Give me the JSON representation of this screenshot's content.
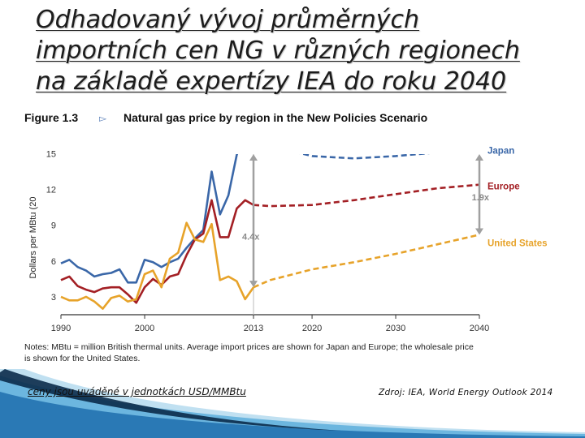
{
  "slide": {
    "title_lines": [
      "Odhadovaný vývoj průměrných",
      "importních cen NG v různých regionech",
      "na základě expertízy IEA do roku 2040"
    ],
    "footer_note": "ceny jsou uváděné v jednotkách USD/MMBtu",
    "footer_source": "Zdroj: IEA, World Energy Outlook 2014"
  },
  "figure": {
    "label": "Figure 1.3",
    "arrow": "▻",
    "caption": "Natural gas price by region in the New Policies Scenario",
    "notes": [
      "Notes: MBtu = million British thermal units. Average import prices are shown for Japan and Europe; the wholesale price",
      "is shown for the United States."
    ]
  },
  "chart_data": {
    "type": "line",
    "ylabel": "Dollars per MBtu (20",
    "xlabel": "",
    "ylim": [
      1.5,
      17
    ],
    "y_ticks": [
      3,
      6,
      9,
      12,
      15
    ],
    "x_ticks": [
      1990,
      2000,
      2013,
      2020,
      2030,
      2040
    ],
    "x_scale": {
      "historical_domain": [
        1990,
        2013
      ],
      "projection_domain": [
        2013,
        2040
      ]
    },
    "grid": false,
    "legend": "right-side labels",
    "series": [
      {
        "name": "Japan",
        "color": "#3a67a8",
        "historical": [
          [
            1990,
            5.8
          ],
          [
            1991,
            6.1
          ],
          [
            1992,
            5.5
          ],
          [
            1993,
            5.2
          ],
          [
            1994,
            4.7
          ],
          [
            1995,
            4.9
          ],
          [
            1996,
            5.0
          ],
          [
            1997,
            5.3
          ],
          [
            1998,
            4.2
          ],
          [
            1999,
            4.2
          ],
          [
            2000,
            6.1
          ],
          [
            2001,
            5.9
          ],
          [
            2002,
            5.5
          ],
          [
            2003,
            5.9
          ],
          [
            2004,
            6.2
          ],
          [
            2005,
            7.1
          ],
          [
            2006,
            7.9
          ],
          [
            2007,
            8.6
          ],
          [
            2008,
            13.5
          ],
          [
            2009,
            9.9
          ],
          [
            2010,
            11.5
          ],
          [
            2011,
            14.9
          ],
          [
            2012,
            16.8
          ],
          [
            2013,
            16.6
          ]
        ],
        "projection": [
          [
            2013,
            16.6
          ],
          [
            2015,
            15.9
          ],
          [
            2017,
            15.3
          ],
          [
            2020,
            14.8
          ],
          [
            2025,
            14.6
          ],
          [
            2030,
            14.8
          ],
          [
            2035,
            15.1
          ],
          [
            2040,
            15.4
          ]
        ]
      },
      {
        "name": "Europe",
        "color": "#a31f24",
        "historical": [
          [
            1990,
            4.4
          ],
          [
            1991,
            4.7
          ],
          [
            1992,
            3.9
          ],
          [
            1993,
            3.6
          ],
          [
            1994,
            3.4
          ],
          [
            1995,
            3.7
          ],
          [
            1996,
            3.8
          ],
          [
            1997,
            3.8
          ],
          [
            1998,
            3.2
          ],
          [
            1999,
            2.5
          ],
          [
            2000,
            3.8
          ],
          [
            2001,
            4.5
          ],
          [
            2002,
            4.0
          ],
          [
            2003,
            4.7
          ],
          [
            2004,
            4.9
          ],
          [
            2005,
            6.5
          ],
          [
            2006,
            7.8
          ],
          [
            2007,
            8.3
          ],
          [
            2008,
            11.1
          ],
          [
            2009,
            8.0
          ],
          [
            2010,
            8.0
          ],
          [
            2011,
            10.4
          ],
          [
            2012,
            11.1
          ],
          [
            2013,
            10.7
          ]
        ],
        "projection": [
          [
            2013,
            10.7
          ],
          [
            2015,
            10.6
          ],
          [
            2020,
            10.7
          ],
          [
            2025,
            11.1
          ],
          [
            2030,
            11.6
          ],
          [
            2035,
            12.1
          ],
          [
            2040,
            12.4
          ]
        ]
      },
      {
        "name": "United States",
        "color": "#e7a32a",
        "historical": [
          [
            1990,
            3.0
          ],
          [
            1991,
            2.7
          ],
          [
            1992,
            2.7
          ],
          [
            1993,
            3.0
          ],
          [
            1994,
            2.6
          ],
          [
            1995,
            2.0
          ],
          [
            1996,
            2.9
          ],
          [
            1997,
            3.1
          ],
          [
            1998,
            2.6
          ],
          [
            1999,
            2.8
          ],
          [
            2000,
            4.9
          ],
          [
            2001,
            5.2
          ],
          [
            2002,
            3.8
          ],
          [
            2003,
            6.2
          ],
          [
            2004,
            6.7
          ],
          [
            2005,
            9.2
          ],
          [
            2006,
            7.8
          ],
          [
            2007,
            7.6
          ],
          [
            2008,
            9.1
          ],
          [
            2009,
            4.4
          ],
          [
            2010,
            4.7
          ],
          [
            2011,
            4.3
          ],
          [
            2012,
            2.8
          ],
          [
            2013,
            3.8
          ]
        ],
        "projection": [
          [
            2013,
            3.8
          ],
          [
            2015,
            4.4
          ],
          [
            2020,
            5.3
          ],
          [
            2025,
            5.9
          ],
          [
            2030,
            6.6
          ],
          [
            2035,
            7.4
          ],
          [
            2040,
            8.2
          ]
        ]
      }
    ],
    "annotations": [
      {
        "text": "4.4x",
        "x": 2013,
        "y_from": 3.8,
        "y_to": 16.6
      },
      {
        "text": "1.9x",
        "x": 2040,
        "y_from": 8.2,
        "y_to": 15.4
      }
    ]
  }
}
